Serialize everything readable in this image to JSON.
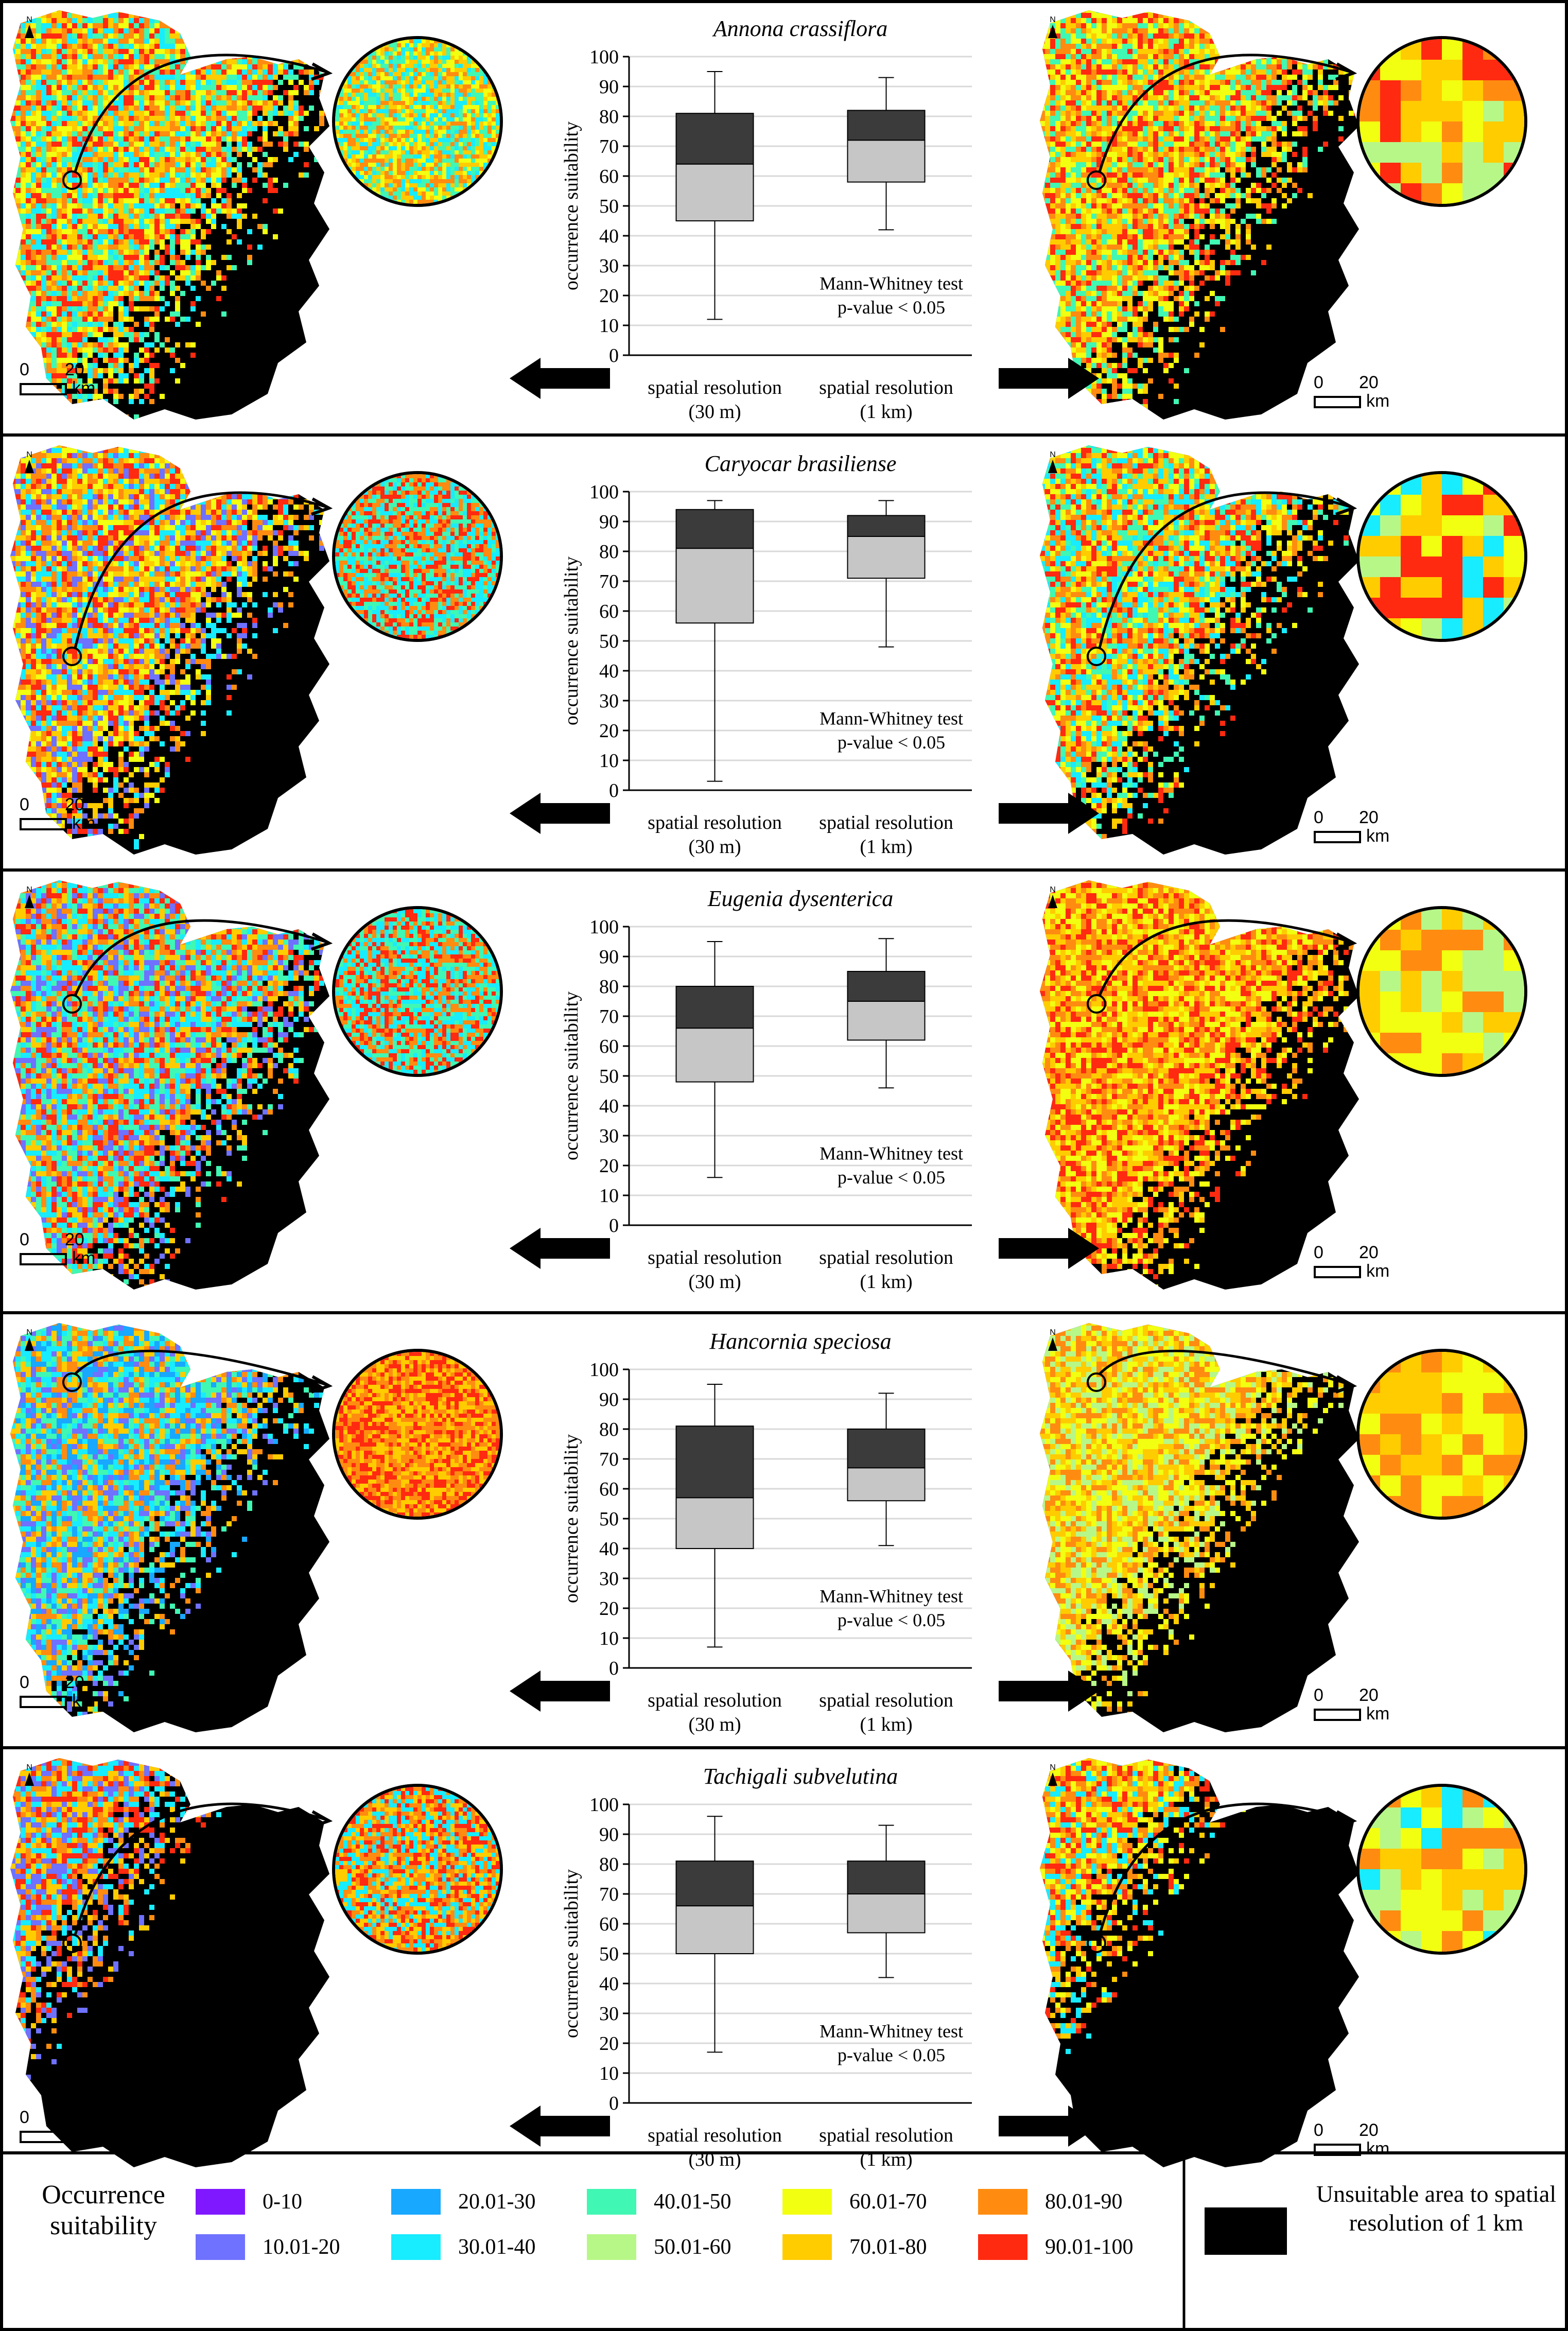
{
  "colors": {
    "black": "#000000",
    "box_upper": "#3b3b3b",
    "box_lower": "#c6c6c6",
    "grid": "#d9d9d9"
  },
  "legend": {
    "title_line1": "Occurrence",
    "title_line2": "suitability",
    "classes": [
      {
        "label": "0-10",
        "color": "#7f18ff"
      },
      {
        "label": "10.01-20",
        "color": "#6f71ff"
      },
      {
        "label": "20.01-30",
        "color": "#18a8ff"
      },
      {
        "label": "30.01-40",
        "color": "#18ecff"
      },
      {
        "label": "40.01-50",
        "color": "#40f7b3"
      },
      {
        "label": "50.01-60",
        "color": "#b7f788"
      },
      {
        "label": "60.01-70",
        "color": "#f2ff10"
      },
      {
        "label": "70.01-80",
        "color": "#ffcc00"
      },
      {
        "label": "80.01-90",
        "color": "#ff8c10"
      },
      {
        "label": "90.01-100",
        "color": "#ff2a10"
      }
    ],
    "unsuitable_line1": "Unsuitable area to spatial",
    "unsuitable_line2": "resolution of 1 km"
  },
  "scale_bar": {
    "zero": "0",
    "twenty": "20",
    "unit": "km"
  },
  "north_label": "N",
  "chart_data": [
    {
      "type": "boxplot",
      "title": "Annona crassiflora",
      "ylabel": "occurrence suitability",
      "ylim": [
        0,
        100
      ],
      "yticks": [
        "0",
        "10",
        "20",
        "30",
        "40",
        "50",
        "60",
        "70",
        "80",
        "90",
        "100"
      ],
      "categories": [
        {
          "line1": "spatial resolution",
          "line2": "(30 m)"
        },
        {
          "line1": "spatial resolution",
          "line2": "(1 km)"
        }
      ],
      "boxes": [
        {
          "min": 12,
          "q1": 45,
          "median": 64,
          "q3": 81,
          "max": 95
        },
        {
          "min": 42,
          "q1": 58,
          "median": 72,
          "q3": 82,
          "max": 93
        }
      ],
      "test_line1": "Mann-Whitney test",
      "test_line2": "p-value < 0.05",
      "map_left_palette": [
        "#ff8c10",
        "#ffcc00",
        "#ff2a10",
        "#18ecff",
        "#40f7b3",
        "#f2ff10"
      ],
      "map_right_palette": [
        "#ff8c10",
        "#ffcc00",
        "#ff2a10",
        "#f2ff10",
        "#40f7b3"
      ],
      "zoom_left_palette": [
        "#ffcc00",
        "#ff8c10",
        "#18ecff",
        "#40f7b3",
        "#f2ff10"
      ],
      "zoom_right_palette": [
        "#ff8c10",
        "#ffcc00",
        "#ff2a10",
        "#f2ff10",
        "#b7f788"
      ]
    },
    {
      "type": "boxplot",
      "title": "Caryocar brasiliense",
      "ylabel": "occurrence suitability",
      "ylim": [
        0,
        100
      ],
      "yticks": [
        "0",
        "10",
        "20",
        "30",
        "40",
        "50",
        "60",
        "70",
        "80",
        "90",
        "100"
      ],
      "categories": [
        {
          "line1": "spatial resolution",
          "line2": "(30 m)"
        },
        {
          "line1": "spatial resolution",
          "line2": "(1 km)"
        }
      ],
      "boxes": [
        {
          "min": 3,
          "q1": 56,
          "median": 81,
          "q3": 94,
          "max": 97
        },
        {
          "min": 48,
          "q1": 71,
          "median": 85,
          "q3": 92,
          "max": 97
        }
      ],
      "test_line1": "Mann-Whitney test",
      "test_line2": "p-value < 0.05",
      "map_left_palette": [
        "#ff2a10",
        "#ff8c10",
        "#ffcc00",
        "#18ecff",
        "#6f71ff",
        "#f2ff10"
      ],
      "map_right_palette": [
        "#ff2a10",
        "#ff8c10",
        "#ffcc00",
        "#f2ff10",
        "#18ecff",
        "#40f7b3"
      ],
      "zoom_left_palette": [
        "#ff2a10",
        "#18ecff",
        "#40f7b3",
        "#ff8c10"
      ],
      "zoom_right_palette": [
        "#f2ff10",
        "#ff2a10",
        "#b7f788",
        "#ffcc00",
        "#18ecff"
      ]
    },
    {
      "type": "boxplot",
      "title": "Eugenia dysenterica",
      "ylabel": "occurrence suitability",
      "ylim": [
        0,
        100
      ],
      "yticks": [
        "0",
        "10",
        "20",
        "30",
        "40",
        "50",
        "60",
        "70",
        "80",
        "90",
        "100"
      ],
      "categories": [
        {
          "line1": "spatial resolution",
          "line2": "(30 m)"
        },
        {
          "line1": "spatial resolution",
          "line2": "(1 km)"
        }
      ],
      "boxes": [
        {
          "min": 16,
          "q1": 48,
          "median": 66,
          "q3": 80,
          "max": 95
        },
        {
          "min": 46,
          "q1": 62,
          "median": 75,
          "q3": 85,
          "max": 96
        }
      ],
      "test_line1": "Mann-Whitney test",
      "test_line2": "p-value < 0.05",
      "map_left_palette": [
        "#ff8c10",
        "#ff2a10",
        "#ffcc00",
        "#18ecff",
        "#40f7b3",
        "#6f71ff"
      ],
      "map_right_palette": [
        "#ff8c10",
        "#ff2a10",
        "#ffcc00",
        "#f2ff10"
      ],
      "zoom_left_palette": [
        "#ff2a10",
        "#18ecff",
        "#40f7b3",
        "#ff8c10"
      ],
      "zoom_right_palette": [
        "#ff8c10",
        "#ffcc00",
        "#f2ff10",
        "#b7f788"
      ]
    },
    {
      "type": "boxplot",
      "title": "Hancornia speciosa",
      "ylabel": "occurrence suitability",
      "ylim": [
        0,
        100
      ],
      "yticks": [
        "0",
        "10",
        "20",
        "30",
        "40",
        "50",
        "60",
        "70",
        "80",
        "90",
        "100"
      ],
      "categories": [
        {
          "line1": "spatial resolution",
          "line2": "(30 m)"
        },
        {
          "line1": "spatial resolution",
          "line2": "(1 km)"
        }
      ],
      "boxes": [
        {
          "min": 7,
          "q1": 40,
          "median": 57,
          "q3": 81,
          "max": 95
        },
        {
          "min": 41,
          "q1": 56,
          "median": 67,
          "q3": 80,
          "max": 92
        }
      ],
      "test_line1": "Mann-Whitney test",
      "test_line2": "p-value < 0.05",
      "map_left_palette": [
        "#ff8c10",
        "#ffcc00",
        "#18ecff",
        "#40f7b3",
        "#18a8ff",
        "#6f71ff"
      ],
      "map_right_palette": [
        "#ff8c10",
        "#ffcc00",
        "#f2ff10",
        "#b7f788"
      ],
      "zoom_left_palette": [
        "#ff8c10",
        "#ffcc00",
        "#ff2a10"
      ],
      "zoom_right_palette": [
        "#ff8c10",
        "#ffcc00",
        "#f2ff10"
      ]
    },
    {
      "type": "boxplot",
      "title": "Tachigali subvelutina",
      "ylabel": "occurrence suitability",
      "ylim": [
        0,
        100
      ],
      "yticks": [
        "0",
        "10",
        "20",
        "30",
        "40",
        "50",
        "60",
        "70",
        "80",
        "90",
        "100"
      ],
      "categories": [
        {
          "line1": "spatial resolution",
          "line2": "(30 m)"
        },
        {
          "line1": "spatial resolution",
          "line2": "(1 km)"
        }
      ],
      "boxes": [
        {
          "min": 17,
          "q1": 50,
          "median": 66,
          "q3": 81,
          "max": 96
        },
        {
          "min": 42,
          "q1": 57,
          "median": 70,
          "q3": 81,
          "max": 93
        }
      ],
      "test_line1": "Mann-Whitney test",
      "test_line2": "p-value < 0.05",
      "map_left_palette": [
        "#ff8c10",
        "#ff2a10",
        "#ffcc00",
        "#18ecff",
        "#6f71ff"
      ],
      "map_right_palette": [
        "#ff8c10",
        "#ff2a10",
        "#ffcc00",
        "#18ecff",
        "#f2ff10"
      ],
      "zoom_left_palette": [
        "#ff2a10",
        "#ff8c10",
        "#18ecff",
        "#ffcc00"
      ],
      "zoom_right_palette": [
        "#f2ff10",
        "#ffcc00",
        "#ff8c10",
        "#b7f788",
        "#18ecff"
      ]
    }
  ]
}
